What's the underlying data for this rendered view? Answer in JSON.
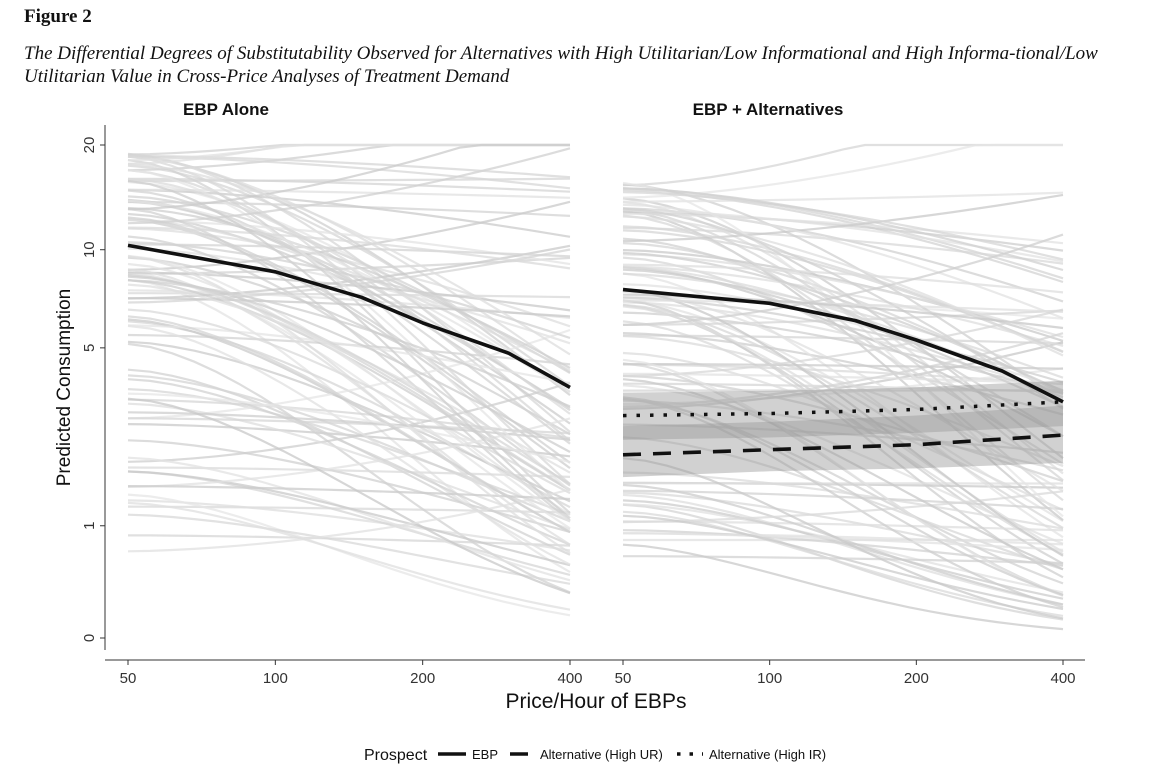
{
  "figure": {
    "label": "Figure 2",
    "caption": "The Differential Degrees of Substitutability Observed for Alternatives with High Utilitarian/Low Informational and High Informa-tional/Low Utilitarian Value in Cross-Price Analyses of Treatment Demand"
  },
  "chart_data": {
    "type": "line",
    "ylabel": "Predicted Consumption",
    "xlabel": "Price/Hour of EBPs",
    "x_scale": "log",
    "y_scale": "pseudo-log",
    "x_ticks": [
      50,
      100,
      200,
      400
    ],
    "x_tick_labels": [
      "50",
      "100",
      "200",
      "400"
    ],
    "y_ticks": [
      0,
      1,
      5,
      10,
      20
    ],
    "y_tick_labels": [
      "0",
      "1",
      "5",
      "10",
      "20"
    ],
    "xlim": [
      50,
      400
    ],
    "ylim": [
      0,
      20
    ],
    "grid": false,
    "legend": {
      "position": "bottom",
      "title": "Prospect",
      "entries": [
        "EBP",
        "Alternative (High UR)",
        "Alternative (High IR)"
      ]
    },
    "panels": [
      {
        "title": "EBP Alone",
        "series": [
          {
            "name": "EBP",
            "style": "solid",
            "x": [
              50,
              100,
              150,
              200,
              300,
              400
            ],
            "y": [
              10.3,
              8.6,
              7.2,
              6.0,
              4.8,
              3.7
            ]
          }
        ],
        "individual_curves": 100
      },
      {
        "title": "EBP + Alternatives",
        "series": [
          {
            "name": "EBP",
            "style": "solid",
            "x": [
              50,
              100,
              150,
              200,
              300,
              400
            ],
            "y": [
              7.6,
              6.9,
              6.1,
              5.3,
              4.2,
              3.3
            ]
          },
          {
            "name": "Alternative (High UR)",
            "style": "dashed",
            "x": [
              50,
              100,
              200,
              400
            ],
            "y": [
              2.1,
              2.2,
              2.3,
              2.5
            ],
            "band": [
              [
                1.7,
                2.7
              ],
              [
                1.8,
                2.8
              ],
              [
                1.85,
                2.95
              ],
              [
                1.95,
                3.2
              ]
            ]
          },
          {
            "name": "Alternative (High IR)",
            "style": "dotted",
            "x": [
              50,
              100,
              200,
              400
            ],
            "y": [
              2.95,
              3.0,
              3.1,
              3.3
            ],
            "band": [
              [
                2.4,
                3.55
              ],
              [
                2.45,
                3.6
              ],
              [
                2.55,
                3.7
              ],
              [
                2.7,
                3.9
              ]
            ]
          }
        ],
        "individual_curves": 100
      }
    ]
  }
}
